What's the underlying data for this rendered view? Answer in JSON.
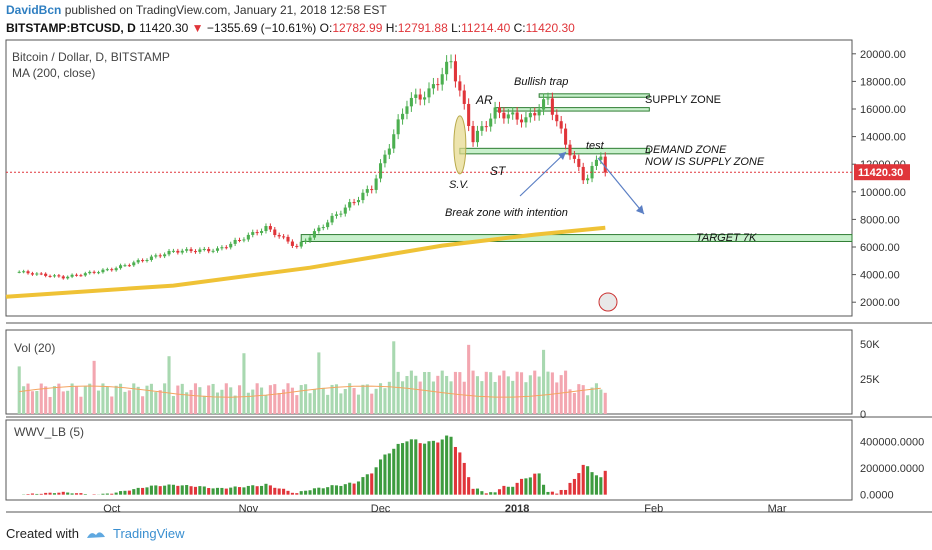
{
  "header": {
    "author": "DavidBcn",
    "published": "published on TradingView.com, January 21, 2018 12:58 EST",
    "symbol": "BITSTAMP:BTCUSD, D",
    "last": "11420.30",
    "change": "−1355.69 (−10.61%)",
    "o": "12782.99",
    "h": "12791.88",
    "l": "11214.40",
    "c": "11420.30"
  },
  "footer": {
    "created_with": "Created with",
    "brand": "TradingView"
  },
  "colors": {
    "up": "#4caf50",
    "down": "#e0353a",
    "vol_up": "#a8d8b0",
    "vol_down": "#f3a6b0",
    "ma": "#efc236",
    "zone_fill": "#c8f0cc",
    "zone_stroke": "#2e7d32",
    "annotation": "#5b7fc4",
    "price_tag": "#e0353a"
  },
  "chart_data": [
    {
      "type": "line",
      "panel": "price",
      "title": "Bitcoin / Dollar, D, BITSTAMP",
      "indicator": "MA (200, close)",
      "ylim": [
        1000,
        21000
      ],
      "y_ticks": [
        "20000.00",
        "18000.00",
        "16000.00",
        "14000.00",
        "12000.00",
        "10000.00",
        "8000.00",
        "6000.00",
        "4000.00",
        "2000.00"
      ],
      "x_ticks": [
        "Oct",
        "Nov",
        "Dec",
        "2018",
        "Feb",
        "Mar"
      ],
      "last_price_label": "11420.30",
      "series": [
        {
          "name": "Bitcoin / Dollar",
          "x": [
            "2017-09-10",
            "2017-09-20",
            "2017-10-01",
            "2017-10-15",
            "2017-10-25",
            "2017-11-05",
            "2017-11-12",
            "2017-11-20",
            "2017-11-29",
            "2017-12-07",
            "2017-12-12",
            "2017-12-17",
            "2017-12-22",
            "2017-12-27",
            "2018-01-03",
            "2018-01-08",
            "2018-01-12",
            "2018-01-16",
            "2018-01-17",
            "2018-01-20",
            "2018-01-21"
          ],
          "values": [
            4200,
            3800,
            4400,
            5700,
            5800,
            7400,
            6000,
            8100,
            10300,
            16500,
            17200,
            19500,
            13800,
            15800,
            15200,
            16700,
            13500,
            11000,
            11100,
            12800,
            11420
          ]
        },
        {
          "name": "MA (200, close)",
          "x": [
            "2017-09-07",
            "2017-10-15",
            "2017-11-15",
            "2017-12-15",
            "2018-01-05",
            "2018-01-21"
          ],
          "values": [
            2400,
            3200,
            4500,
            6100,
            6900,
            7400
          ]
        }
      ]
    },
    {
      "type": "bar",
      "panel": "volume",
      "title": "Vol (20)",
      "y_ticks": [
        "50K",
        "25K",
        "0"
      ],
      "ylim": [
        0,
        60000
      ]
    },
    {
      "type": "bar",
      "panel": "oscillator",
      "title": "WWV_LB (5)",
      "y_ticks": [
        "400000.0000",
        "200000.0000",
        "0.0000"
      ],
      "ylim": [
        -40000,
        560000
      ]
    }
  ],
  "annotations": {
    "bullish_trap": "Bullish trap",
    "supply_zone": "SUPPLY ZONE",
    "demand_zone": "DEMAND ZONE",
    "now_supply": "NOW IS SUPPLY ZONE",
    "ar": "AR",
    "st": "ST",
    "sv": "S.V.",
    "test": "test",
    "break_zone": "Break zone with intention",
    "target": "TARGET 7K"
  }
}
